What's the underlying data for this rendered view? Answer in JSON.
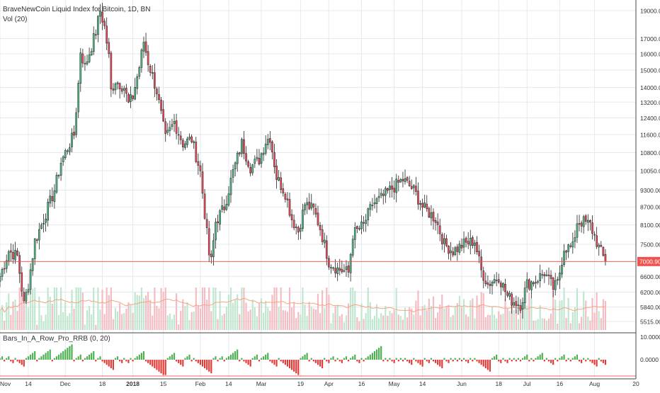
{
  "chart_data": [
    {
      "type": "candlestick",
      "title": "BraveNewCoin Liquid Index for Bitcoin, 1D, BN",
      "interval": "1D",
      "y_scale": "log",
      "y_ticks": [
        5515,
        5840,
        6200,
        6600,
        7000,
        7500,
        8100,
        8700,
        9300,
        10050,
        10800,
        11600,
        12400,
        13200,
        14000,
        15000,
        16000,
        17000,
        19000
      ],
      "y_tick_labels": [
        "5515.00",
        "5840.00",
        "6200.00",
        "6600.00",
        "7000.00",
        "7500.00",
        "8100.00",
        "8700.00",
        "9300.00",
        "10050.00",
        "10800.00",
        "11600.00",
        "12400.00",
        "13200.00",
        "14000.00",
        "15000.00",
        "16000.00",
        "17000.00",
        "19000.00"
      ],
      "last_price_label": "7000.90",
      "last_price": 7000.9,
      "x_tick_labels": [
        "Nov",
        "14",
        "Dec",
        "18",
        "2018",
        "15",
        "Feb",
        "14",
        "Mar",
        "19",
        "Apr",
        "16",
        "May",
        "14",
        "Jun",
        "18",
        "Jul",
        "16",
        "Aug",
        "20"
      ],
      "x_range": [
        "2017-11-01",
        "2018-08-20"
      ],
      "close_anchors": [
        [
          "2017-11-01",
          6600
        ],
        [
          "2017-11-05",
          7300
        ],
        [
          "2017-11-09",
          7150
        ],
        [
          "2017-11-12",
          5900
        ],
        [
          "2017-11-14",
          6400
        ],
        [
          "2017-11-17",
          7600
        ],
        [
          "2017-11-20",
          8100
        ],
        [
          "2017-11-26",
          9300
        ],
        [
          "2017-11-29",
          10400
        ],
        [
          "2017-12-02",
          11000
        ],
        [
          "2017-12-05",
          11600
        ],
        [
          "2017-12-07",
          14200
        ],
        [
          "2017-12-08",
          16200
        ],
        [
          "2017-12-10",
          15200
        ],
        [
          "2017-12-13",
          16500
        ],
        [
          "2017-12-15",
          17500
        ],
        [
          "2017-12-17",
          19000
        ],
        [
          "2017-12-19",
          17800
        ],
        [
          "2017-12-21",
          15800
        ],
        [
          "2017-12-22",
          13800
        ],
        [
          "2017-12-24",
          14400
        ],
        [
          "2017-12-28",
          14000
        ],
        [
          "2017-12-30",
          13100
        ],
        [
          "2018-01-01",
          13500
        ],
        [
          "2018-01-04",
          15200
        ],
        [
          "2018-01-06",
          16800
        ],
        [
          "2018-01-08",
          15500
        ],
        [
          "2018-01-12",
          13800
        ],
        [
          "2018-01-16",
          11400
        ],
        [
          "2018-01-20",
          12200
        ],
        [
          "2018-01-24",
          11200
        ],
        [
          "2018-01-28",
          11400
        ],
        [
          "2018-02-01",
          10000
        ],
        [
          "2018-02-05",
          7200
        ],
        [
          "2018-02-06",
          7000
        ],
        [
          "2018-02-08",
          8200
        ],
        [
          "2018-02-12",
          8700
        ],
        [
          "2018-02-16",
          10000
        ],
        [
          "2018-02-20",
          11200
        ],
        [
          "2018-02-24",
          10200
        ],
        [
          "2018-02-28",
          10500
        ],
        [
          "2018-03-03",
          11300
        ],
        [
          "2018-03-05",
          11500
        ],
        [
          "2018-03-08",
          9800
        ],
        [
          "2018-03-12",
          9200
        ],
        [
          "2018-03-15",
          8300
        ],
        [
          "2018-03-18",
          7900
        ],
        [
          "2018-03-21",
          8800
        ],
        [
          "2018-03-25",
          8600
        ],
        [
          "2018-03-28",
          8000
        ],
        [
          "2018-04-01",
          7000
        ],
        [
          "2018-04-05",
          6800
        ],
        [
          "2018-04-10",
          6700
        ],
        [
          "2018-04-12",
          7800
        ],
        [
          "2018-04-17",
          8100
        ],
        [
          "2018-04-21",
          8800
        ],
        [
          "2018-04-25",
          9000
        ],
        [
          "2018-04-29",
          9300
        ],
        [
          "2018-05-05",
          9700
        ],
        [
          "2018-05-10",
          9300
        ],
        [
          "2018-05-14",
          8700
        ],
        [
          "2018-05-20",
          8300
        ],
        [
          "2018-05-24",
          7500
        ],
        [
          "2018-05-28",
          7300
        ],
        [
          "2018-06-02",
          7500
        ],
        [
          "2018-06-07",
          7600
        ],
        [
          "2018-06-10",
          6750
        ],
        [
          "2018-06-13",
          6400
        ],
        [
          "2018-06-18",
          6600
        ],
        [
          "2018-06-22",
          6100
        ],
        [
          "2018-06-24",
          6000
        ],
        [
          "2018-06-28",
          5900
        ],
        [
          "2018-07-01",
          6400
        ],
        [
          "2018-07-05",
          6500
        ],
        [
          "2018-07-09",
          6700
        ],
        [
          "2018-07-13",
          6300
        ],
        [
          "2018-07-15",
          6400
        ],
        [
          "2018-07-18",
          7400
        ],
        [
          "2018-07-22",
          7400
        ],
        [
          "2018-07-24",
          8200
        ],
        [
          "2018-07-27",
          8200
        ],
        [
          "2018-07-30",
          8100
        ],
        [
          "2018-08-03",
          7400
        ],
        [
          "2018-08-06",
          7000
        ]
      ]
    },
    {
      "type": "bar",
      "title": "Vol (20)",
      "series": [
        {
          "values_role": "daily volume, tinted by candle direction"
        },
        {
          "values_role": "20-period moving average of volume, drawn as a line"
        }
      ]
    },
    {
      "type": "bar",
      "title": "Bars_In_A_Row_Pro_RRB (0, 20)",
      "y_ticks": [
        10,
        0
      ],
      "y_tick_labels": [
        "10.0000",
        "0.0000"
      ],
      "series": [
        {
          "values_role": "consecutive up-day count, positive, green"
        },
        {
          "values_role": "consecutive down-day count, negative, red"
        }
      ]
    }
  ],
  "colors": {
    "up": "#53b987",
    "down": "#eb4d5c",
    "candle_outline": "#222222",
    "vol_up": "#bfe6cf",
    "vol_down": "#f3bcc2",
    "vol_ma": "#f4a582",
    "last_price_line": "#ef5350",
    "indicator_up": "#4caf50",
    "indicator_down": "#e53935",
    "axis_text": "#333333",
    "grid": "#e6e9ec"
  }
}
